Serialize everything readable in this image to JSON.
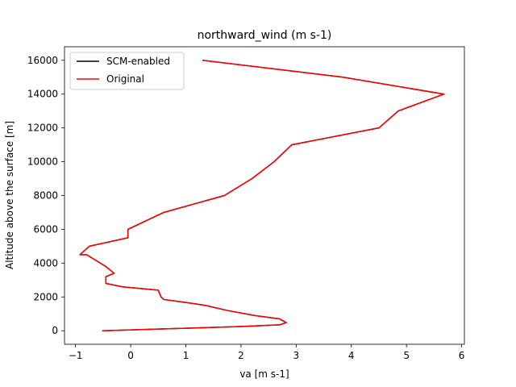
{
  "chart_data": {
    "type": "line",
    "title": "northward_wind (m s-1)",
    "xlabel": "va [m s-1]",
    "ylabel": "Altitude above the surface [m]",
    "xlim": [
      -1.2,
      6.05
    ],
    "ylim": [
      -800,
      16800
    ],
    "xticks": [
      -1,
      0,
      1,
      2,
      3,
      4,
      5,
      6
    ],
    "yticks": [
      0,
      2000,
      4000,
      6000,
      8000,
      10000,
      12000,
      14000,
      16000
    ],
    "grid": false,
    "legend": "upper-left",
    "series": [
      {
        "name": "SCM-enabled",
        "color": "#000000",
        "x": [
          -0.52,
          0.5,
          2.0,
          2.7,
          2.82,
          2.7,
          2.25,
          1.75,
          1.35,
          1.05,
          0.6,
          0.55,
          0.5,
          -0.15,
          -0.45,
          -0.45,
          -0.3,
          -0.45,
          -0.8,
          -0.92,
          -0.75,
          -0.05,
          -0.05,
          0.6,
          1.7,
          2.2,
          2.6,
          2.92,
          4.5,
          4.85,
          5.68,
          3.85,
          1.3
        ],
        "y": [
          0,
          100,
          250,
          350,
          480,
          700,
          900,
          1200,
          1500,
          1650,
          1850,
          2000,
          2400,
          2600,
          2800,
          3200,
          3400,
          3800,
          4500,
          4500,
          5000,
          5500,
          6000,
          7000,
          8000,
          9000,
          10000,
          11000,
          12000,
          13000,
          14000,
          15000,
          16000
        ]
      },
      {
        "name": "Original",
        "color": "#ff0000",
        "x": [
          -0.52,
          0.5,
          2.0,
          2.7,
          2.82,
          2.7,
          2.25,
          1.75,
          1.35,
          1.05,
          0.6,
          0.55,
          0.5,
          -0.15,
          -0.45,
          -0.45,
          -0.3,
          -0.45,
          -0.8,
          -0.92,
          -0.75,
          -0.05,
          -0.05,
          0.6,
          1.7,
          2.2,
          2.6,
          2.92,
          4.5,
          4.85,
          5.68,
          3.85,
          1.3
        ],
        "y": [
          0,
          100,
          250,
          350,
          480,
          700,
          900,
          1200,
          1500,
          1650,
          1850,
          2000,
          2400,
          2600,
          2800,
          3200,
          3400,
          3800,
          4500,
          4500,
          5000,
          5500,
          6000,
          7000,
          8000,
          9000,
          10000,
          11000,
          12000,
          13000,
          14000,
          15000,
          16000
        ]
      }
    ]
  }
}
